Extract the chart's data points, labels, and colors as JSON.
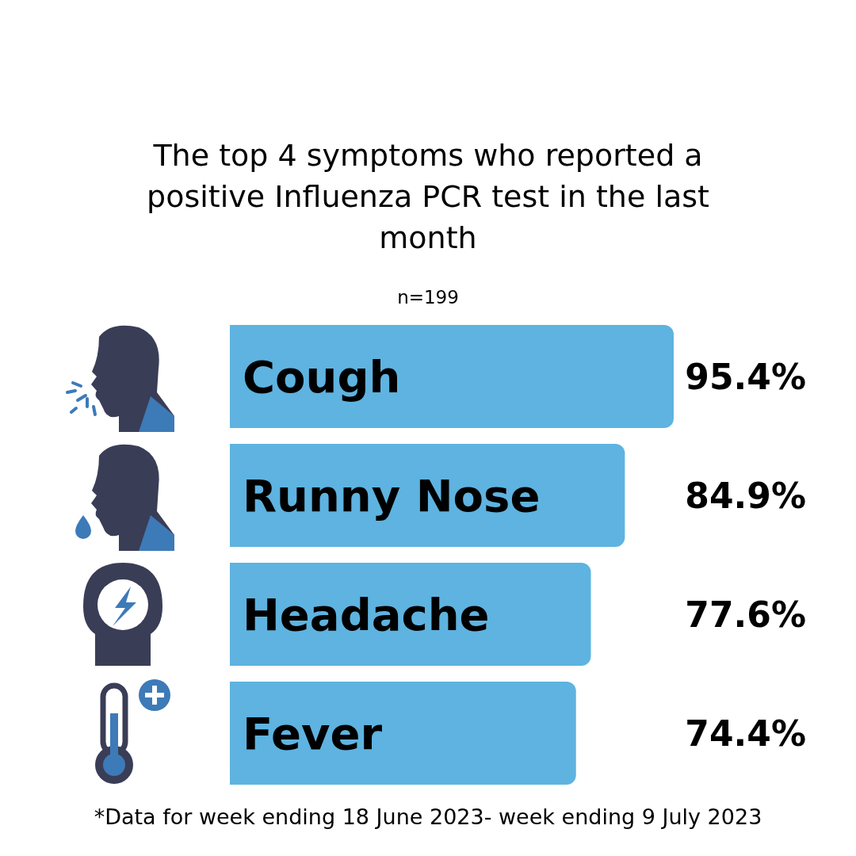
{
  "chart_data": {
    "type": "bar",
    "orientation": "horizontal",
    "title": "The top 4 symptoms who reported a positive Influenza PCR test in the last month",
    "subtitle": "n=199",
    "categories": [
      "Cough",
      "Runny Nose",
      "Headache",
      "Fever"
    ],
    "values": [
      95.4,
      84.9,
      77.6,
      74.4
    ],
    "value_labels": [
      "95.4%",
      "84.9%",
      "77.6%",
      "74.4%"
    ],
    "color": "#5eb3e0",
    "annotations": [
      "*Data for week ending 18 June 2023- week ending 9 July 2023"
    ]
  }
}
